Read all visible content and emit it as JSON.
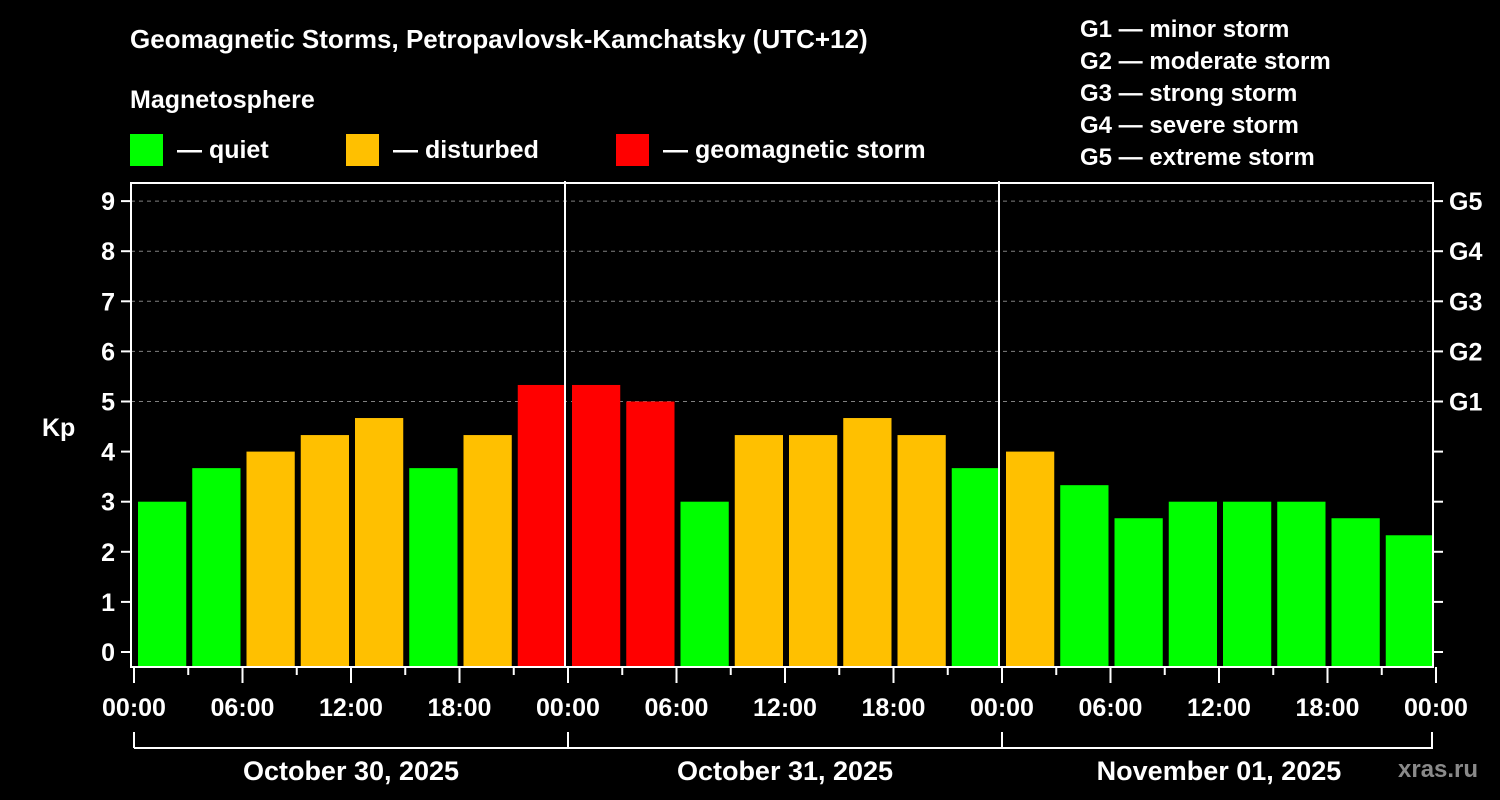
{
  "header": {
    "title": "Geomagnetic Storms, Petropavlovsk-Kamchatsky (UTC+12)",
    "subtitle": "Magnetosphere"
  },
  "legend": [
    {
      "label": "— quiet",
      "color": "#00ff00"
    },
    {
      "label": "— disturbed",
      "color": "#ffc000"
    },
    {
      "label": "— geomagnetic storm",
      "color": "#ff0000"
    }
  ],
  "g_scale_legend": [
    "G1 — minor storm",
    "G2 — moderate storm",
    "G3 — strong storm",
    "G4 — severe storm",
    "G5 — extreme storm"
  ],
  "watermark": "xras.ru",
  "colors": {
    "quiet": "#00ff00",
    "disturbed": "#ffc000",
    "storm": "#ff0000",
    "background": "#000000",
    "axis": "#ffffff",
    "grid": "#808080"
  },
  "chart_data": {
    "type": "bar",
    "title": "Geomagnetic Storms, Petropavlovsk-Kamchatsky (UTC+12)",
    "xlabel": "",
    "ylabel": "Kp",
    "ylim": [
      0,
      9
    ],
    "yticks": [
      0,
      1,
      2,
      3,
      4,
      5,
      6,
      7,
      8,
      9
    ],
    "right_axis_labels": [
      {
        "kp": 5,
        "label": "G1"
      },
      {
        "kp": 6,
        "label": "G2"
      },
      {
        "kp": 7,
        "label": "G3"
      },
      {
        "kp": 8,
        "label": "G4"
      },
      {
        "kp": 9,
        "label": "G5"
      }
    ],
    "grid": "dashed horizontal at Kp 5-9",
    "bar_interval_hours": 3,
    "xtick_labels": [
      "00:00",
      "06:00",
      "12:00",
      "18:00",
      "00:00",
      "06:00",
      "12:00",
      "18:00",
      "00:00",
      "06:00",
      "12:00",
      "18:00",
      "00:00"
    ],
    "dates": [
      "October 30, 2025",
      "October 31, 2025",
      "November 01, 2025"
    ],
    "categories": [
      "Oct 30 00:00",
      "Oct 30 03:00",
      "Oct 30 06:00",
      "Oct 30 09:00",
      "Oct 30 12:00",
      "Oct 30 15:00",
      "Oct 30 18:00",
      "Oct 30 21:00",
      "Oct 31 00:00",
      "Oct 31 03:00",
      "Oct 31 06:00",
      "Oct 31 09:00",
      "Oct 31 12:00",
      "Oct 31 15:00",
      "Oct 31 18:00",
      "Oct 31 21:00",
      "Nov 01 00:00",
      "Nov 01 03:00",
      "Nov 01 06:00",
      "Nov 01 09:00",
      "Nov 01 12:00",
      "Nov 01 15:00",
      "Nov 01 18:00",
      "Nov 01 21:00"
    ],
    "values": [
      3.0,
      3.67,
      4.0,
      4.33,
      4.67,
      3.67,
      4.33,
      5.33,
      5.33,
      5.0,
      3.0,
      4.33,
      4.33,
      4.67,
      4.33,
      3.67,
      4.0,
      3.33,
      2.67,
      3.0,
      3.0,
      3.0,
      2.67,
      2.33
    ],
    "levels": [
      "quiet",
      "quiet",
      "disturbed",
      "disturbed",
      "disturbed",
      "quiet",
      "disturbed",
      "storm",
      "storm",
      "storm",
      "quiet",
      "disturbed",
      "disturbed",
      "disturbed",
      "disturbed",
      "quiet",
      "disturbed",
      "quiet",
      "quiet",
      "quiet",
      "quiet",
      "quiet",
      "quiet",
      "quiet"
    ],
    "legend_position": "top"
  }
}
